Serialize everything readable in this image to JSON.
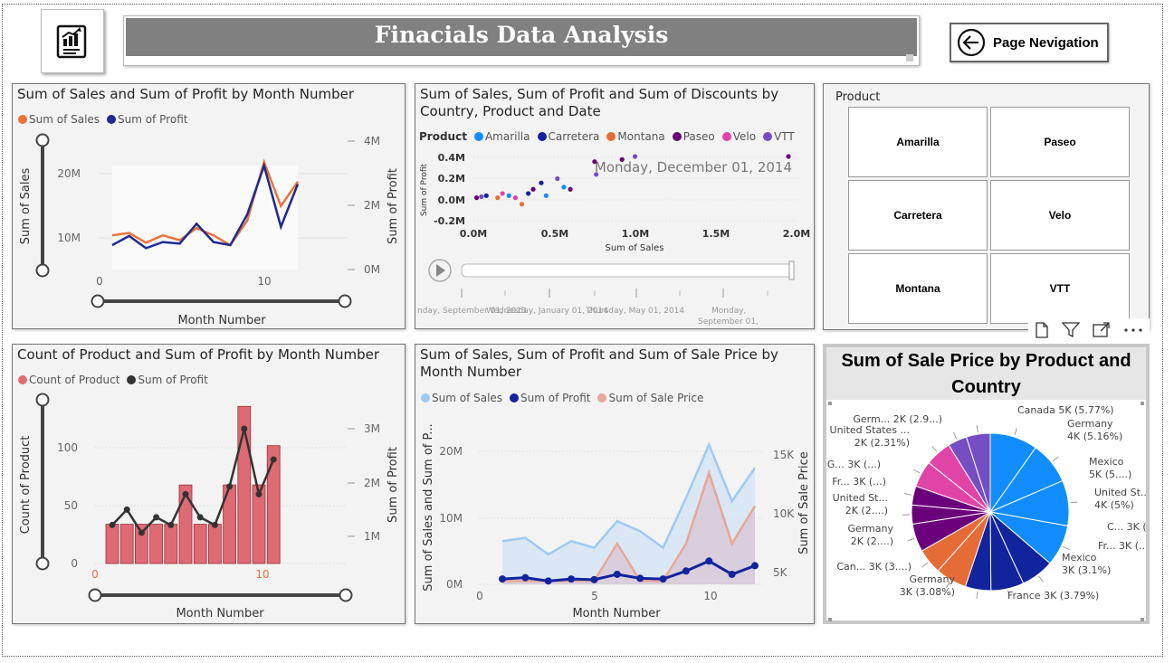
{
  "header": {
    "title": "Finacials Data Analysis",
    "nav_label": "Page Nevigation"
  },
  "chart1": {
    "title": "Sum of Sales and Sum of Profit by Month Number",
    "legend": [
      "Sum of Sales",
      "Sum of Profit"
    ],
    "colors": [
      "#e8743b",
      "#1f2a8f"
    ],
    "y_left_label": "Sum of Sales",
    "y_right_label": "Sum of Profit",
    "x_label": "Month Number",
    "y_left_ticks": [
      "20M",
      "10M"
    ],
    "y_right_ticks": [
      "4M",
      "2M",
      "0M"
    ],
    "x_ticks": [
      "0",
      "10"
    ]
  },
  "chart2": {
    "title": "Sum of Sales, Sum of Profit and Sum of Discounts by Country, Product and Date",
    "legend_label": "Product",
    "legend": [
      "Amarilla",
      "Carretera",
      "Montana",
      "Paseo",
      "Velo",
      "VTT"
    ],
    "colors": [
      "#118dff",
      "#12239e",
      "#e66c37",
      "#6b007b",
      "#e044a7",
      "#744ec2"
    ],
    "y_label": "Sum of Profit",
    "x_label": "Sum of Sales",
    "y_ticks": [
      "0.4M",
      "0.2M",
      "0.0M",
      "-0.2M"
    ],
    "x_ticks": [
      "0.0M",
      "0.5M",
      "1.0M",
      "1.5M",
      "2.0M"
    ],
    "date_overlay": "Monday, December 01, 2014",
    "timeline_labels": [
      "nday, September 01, 2013",
      "Wednesday, January 01, 2014",
      "Thursday, May 01, 2014",
      "Monday,",
      "September 01,"
    ]
  },
  "slicer": {
    "title": "Product",
    "items": [
      "Amarilla",
      "Paseo",
      "Carretera",
      "Velo",
      "Montana",
      "VTT"
    ]
  },
  "chart3": {
    "title": "Count of Product and Sum of Profit by Month Number",
    "legend": [
      "Count of Product",
      "Sum of Profit"
    ],
    "colors": [
      "#de6a73",
      "#333333"
    ],
    "y_left_label": "Count of Product",
    "y_right_label": "Sum of Profit",
    "x_label": "Month Number",
    "y_left_ticks": [
      "100",
      "50",
      "0"
    ],
    "y_right_ticks": [
      "3M",
      "2M",
      "1M"
    ],
    "x_ticks": [
      "0",
      "10"
    ]
  },
  "chart4": {
    "title": "Sum of Sales, Sum of Profit and Sum of Sale Price by Month Number",
    "legend": [
      "Sum of Sales",
      "Sum of Profit",
      "Sum of Sale Price"
    ],
    "colors": [
      "#9fcaf5",
      "#12239e",
      "#e8a798"
    ],
    "y_left_label": "Sum of Sales and Sum of P...",
    "y_right_label": "Sum of Sale Price",
    "x_label": "Month Number",
    "y_left_ticks": [
      "20M",
      "10M",
      "0M"
    ],
    "y_right_ticks": [
      "15K",
      "10K",
      "5K"
    ],
    "x_ticks": [
      "0",
      "5",
      "10"
    ]
  },
  "chart5": {
    "title": "Sum of Sale Price by Product and Country",
    "labels": [
      {
        "lines": [
          "Canada 5K (5.77%)"
        ]
      },
      {
        "lines": [
          "Germany",
          "4K (5.16%)"
        ]
      },
      {
        "lines": [
          "Mexico",
          "5K (5....)"
        ]
      },
      {
        "lines": [
          "United St...",
          "4K (5%)"
        ]
      },
      {
        "lines": [
          "C... 3K (...)"
        ]
      },
      {
        "lines": [
          "Fr... 3K (...)"
        ]
      },
      {
        "lines": [
          "Mexico",
          "3K (3.1%)"
        ]
      },
      {
        "lines": [
          "France 3K (3.79%)"
        ]
      },
      {
        "lines": [
          "Germany",
          "3K (3.08%)"
        ]
      },
      {
        "lines": [
          "Can... 3K (3....)"
        ]
      },
      {
        "lines": [
          "Germany",
          "2K (2....)"
        ]
      },
      {
        "lines": [
          "United St...",
          "2K (2....)"
        ]
      },
      {
        "lines": [
          "Fr... 3K (...)"
        ]
      },
      {
        "lines": [
          "G... 3K (...)"
        ]
      },
      {
        "lines": [
          "United States ...",
          "2K (2.31%)"
        ]
      },
      {
        "lines": [
          "Germ... 2K (2.9...)"
        ]
      }
    ]
  },
  "chart_data": [
    {
      "type": "line",
      "title": "Sum of Sales and Sum of Profit by Month Number",
      "xlabel": "Month Number",
      "ylabel": "Sum of Sales",
      "x": [
        1,
        2,
        3,
        4,
        5,
        6,
        7,
        8,
        9,
        10,
        11,
        12
      ],
      "series": [
        {
          "name": "Sum of Sales",
          "values": [
            7,
            7.5,
            5.5,
            7,
            6,
            8.5,
            7,
            5,
            10,
            22,
            13,
            18
          ]
        },
        {
          "name": "Sum of Profit",
          "values": [
            0.8,
            1.1,
            0.7,
            0.9,
            0.85,
            1.5,
            0.9,
            0.8,
            1.8,
            3.4,
            1.4,
            2.8
          ]
        }
      ],
      "ylim": [
        0,
        25
      ]
    },
    {
      "type": "scatter",
      "title": "Sum of Sales, Sum of Profit and Sum of Discounts by Country, Product and Date",
      "xlabel": "Sum of Sales",
      "ylabel": "Sum of Profit",
      "points": [
        {
          "x": 0.02,
          "y": 0.01,
          "product": "Paseo"
        },
        {
          "x": 0.05,
          "y": 0.015,
          "product": "VTT"
        },
        {
          "x": 0.08,
          "y": 0.02,
          "product": "Carretera"
        },
        {
          "x": 0.15,
          "y": 0.01,
          "product": "Montana"
        },
        {
          "x": 0.18,
          "y": 0.03,
          "product": "Velo"
        },
        {
          "x": 0.22,
          "y": 0.02,
          "product": "Amarilla"
        },
        {
          "x": 0.26,
          "y": 0.01,
          "product": "Velo"
        },
        {
          "x": 0.3,
          "y": -0.02,
          "product": "Montana"
        },
        {
          "x": 0.34,
          "y": 0.03,
          "product": "Carretera"
        },
        {
          "x": 0.37,
          "y": 0.05,
          "product": "Paseo"
        },
        {
          "x": 0.42,
          "y": 0.08,
          "product": "Carretera"
        },
        {
          "x": 0.45,
          "y": 0.02,
          "product": "Amarilla"
        },
        {
          "x": 0.52,
          "y": 0.1,
          "product": "VTT"
        },
        {
          "x": 0.56,
          "y": 0.06,
          "product": "Amarilla"
        },
        {
          "x": 0.6,
          "y": 0.05,
          "product": "Paseo"
        },
        {
          "x": 0.75,
          "y": 0.18,
          "product": "Paseo"
        },
        {
          "x": 0.76,
          "y": 0.12,
          "product": "VTT"
        },
        {
          "x": 0.92,
          "y": 0.19,
          "product": "Paseo"
        },
        {
          "x": 1.0,
          "y": 0.22,
          "product": "VTT"
        },
        {
          "x": 1.95,
          "y": 0.37,
          "product": "Paseo"
        }
      ],
      "ylim": [
        -0.2,
        0.4
      ],
      "xlim": [
        0,
        2
      ]
    },
    {
      "type": "bar",
      "title": "Count of Product and Sum of Profit by Month Number",
      "xlabel": "Month Number",
      "ylabel": "Count of Product",
      "categories": [
        1,
        2,
        3,
        4,
        5,
        6,
        7,
        8,
        9,
        10,
        11,
        12
      ],
      "series": [
        {
          "name": "Count of Product",
          "values": [
            35,
            35,
            35,
            35,
            35,
            70,
            35,
            35,
            70,
            140,
            70,
            105
          ]
        },
        {
          "name": "Sum of Profit",
          "values": [
            1.0,
            1.4,
            0.8,
            1.2,
            1.0,
            1.8,
            1.2,
            1.0,
            2.0,
            3.5,
            1.8,
            2.7
          ]
        }
      ],
      "ylim": [
        0,
        150
      ]
    },
    {
      "type": "area",
      "title": "Sum of Sales, Sum of Profit and Sum of Sale Price by Month Number",
      "xlabel": "Month Number",
      "ylabel": "Sum of Sales and Sum of P...",
      "x": [
        1,
        2,
        3,
        4,
        5,
        6,
        7,
        8,
        9,
        10,
        11,
        12
      ],
      "series": [
        {
          "name": "Sum of Sales",
          "values": [
            6.5,
            7,
            4.5,
            6.5,
            5.5,
            9.5,
            8,
            5.5,
            13,
            21,
            12.5,
            17.5
          ]
        },
        {
          "name": "Sum of Profit",
          "values": [
            0.8,
            1.0,
            0.5,
            0.8,
            0.7,
            1.5,
            0.9,
            0.8,
            2.0,
            3.5,
            1.5,
            2.8
          ]
        },
        {
          "name": "Sum of Sale Price",
          "values": [
            4,
            4,
            4,
            4,
            4,
            8.5,
            4,
            4,
            8.5,
            17,
            8.5,
            13
          ]
        }
      ],
      "ylim": [
        0,
        25
      ]
    },
    {
      "type": "pie",
      "title": "Sum of Sale Price by Product and Country",
      "slices": [
        {
          "label": "Canada",
          "value": 5.77,
          "color": "#118dff"
        },
        {
          "label": "Germany",
          "value": 5.16,
          "color": "#118dff"
        },
        {
          "label": "Mexico",
          "value": 5.5,
          "color": "#118dff"
        },
        {
          "label": "United St...",
          "value": 5.0,
          "color": "#118dff"
        },
        {
          "label": "C...",
          "value": 4.0,
          "color": "#12239e"
        },
        {
          "label": "Fr...",
          "value": 4.0,
          "color": "#12239e"
        },
        {
          "label": "Mexico",
          "value": 3.1,
          "color": "#12239e"
        },
        {
          "label": "France",
          "value": 3.79,
          "color": "#e66c37"
        },
        {
          "label": "Germany",
          "value": 3.08,
          "color": "#e66c37"
        },
        {
          "label": "Can...",
          "value": 3.4,
          "color": "#6b007b"
        },
        {
          "label": "Germany",
          "value": 2.3,
          "color": "#6b007b"
        },
        {
          "label": "United St...",
          "value": 2.3,
          "color": "#6b007b"
        },
        {
          "label": "Fr...",
          "value": 3.2,
          "color": "#e044a7"
        },
        {
          "label": "G...",
          "value": 3.2,
          "color": "#e044a7"
        },
        {
          "label": "United States ...",
          "value": 2.31,
          "color": "#744ec2"
        },
        {
          "label": "Germ...",
          "value": 2.9,
          "color": "#744ec2"
        }
      ]
    }
  ]
}
